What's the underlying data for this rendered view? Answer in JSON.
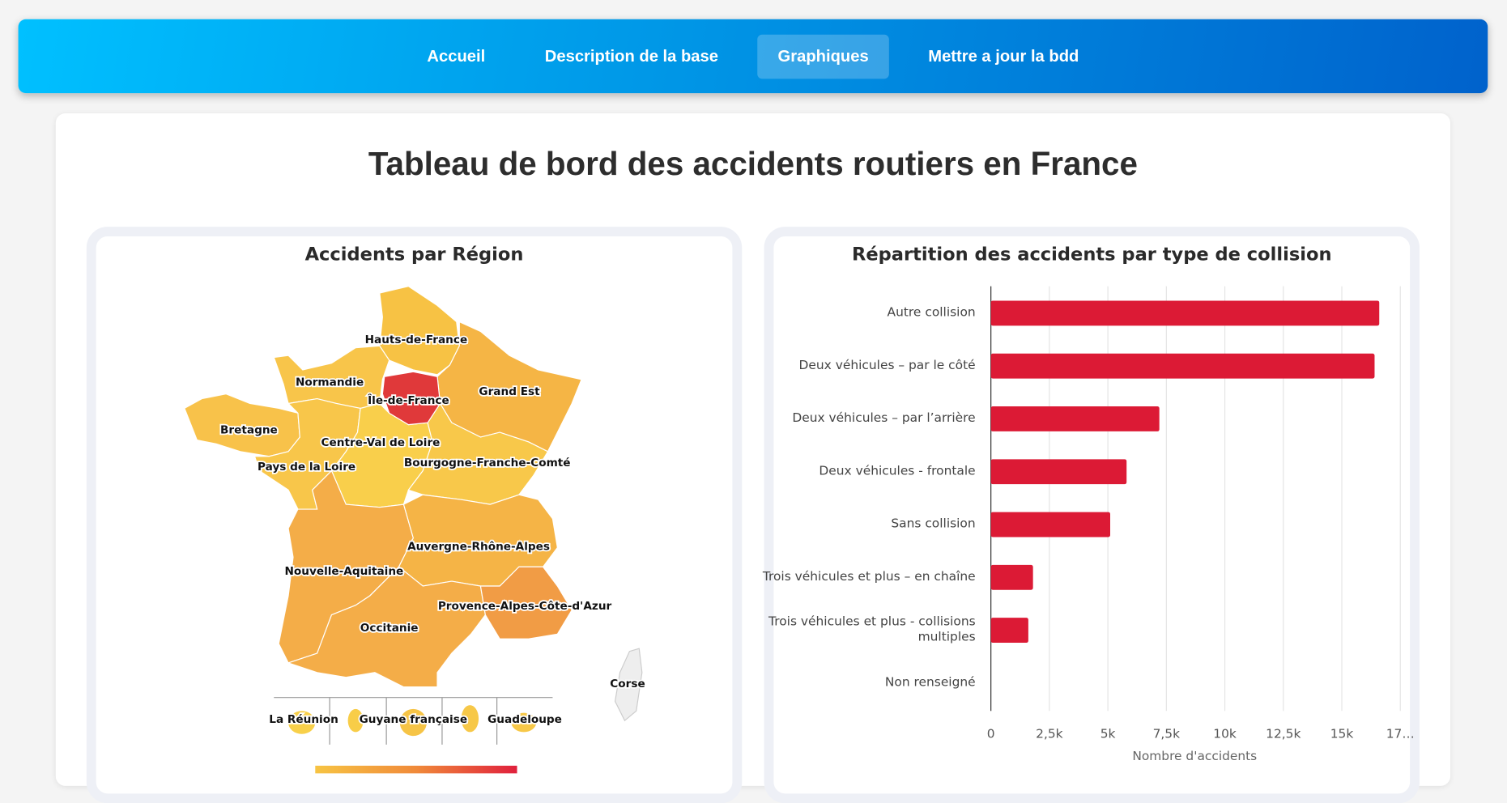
{
  "nav": {
    "items": [
      "Accueil",
      "Description de la base",
      "Graphiques",
      "Mettre a jour la bdd"
    ],
    "active": 2
  },
  "title": "Tableau de bord des accidents routiers en France",
  "map": {
    "title": "Accidents par Région",
    "regions": [
      "Hauts-de-France",
      "Normandie",
      "Île-de-France",
      "Grand Est",
      "Bretagne",
      "Centre-Val de Loire",
      "Pays de la Loire",
      "Bourgogne-Franche-Comté",
      "Auvergne-Rhône-Alpes",
      "Nouvelle-Aquitaine",
      "Provence-Alpes-Côte-d'Azur",
      "Occitanie",
      "Corse"
    ],
    "overseas": [
      "La Réunion",
      "Guyane française",
      "Guadeloupe"
    ]
  },
  "chart_data": {
    "type": "bar",
    "orientation": "horizontal",
    "title": "Répartition des accidents par type de collision",
    "categories": [
      "Autre collision",
      "Deux véhicules – par le côté",
      "Deux véhicules – par l’arrière",
      "Deux véhicules - frontale",
      "Sans collision",
      "Trois véhicules et plus – en chaîne",
      "Trois véhicules et plus - collisions multiples",
      "Non renseigné"
    ],
    "values": [
      16600,
      16400,
      7200,
      5800,
      5100,
      1800,
      1600,
      0
    ],
    "color": "#dc1a35",
    "xlim": [
      0,
      17500
    ],
    "xticks": [
      0,
      {
        "value": 2500,
        "label": "2,5k"
      },
      {
        "value": 5000,
        "label": "5k"
      },
      {
        "value": 7500,
        "label": "7,5k"
      },
      {
        "value": 10000,
        "label": "10k"
      },
      {
        "value": 12500,
        "label": "12,5k"
      },
      {
        "value": 15000,
        "label": "15k"
      },
      {
        "value": 17500,
        "label": "17…"
      }
    ],
    "xlabel": "Nombre d'accidents",
    "grid": true
  }
}
